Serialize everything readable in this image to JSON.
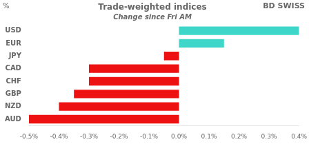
{
  "chart_data": {
    "type": "bar",
    "orientation": "horizontal",
    "title": "Trade-weighted indices",
    "subtitle": "Change since Fri AM",
    "annotations": [
      "%",
      "BD",
      "SWISS"
    ],
    "categories": [
      "USD",
      "EUR",
      "JPY",
      "CAD",
      "CHF",
      "GBP",
      "NZD",
      "AUD"
    ],
    "values": [
      0.004,
      0.0015,
      -0.0005,
      -0.003,
      -0.003,
      -0.0035,
      -0.004,
      -0.005
    ],
    "colors": [
      "#3dd6c8",
      "#3dd6c8",
      "#ee1111",
      "#ee1111",
      "#ee1111",
      "#ee1111",
      "#ee1111",
      "#ee1111"
    ],
    "xlim": [
      -0.005,
      0.004
    ],
    "xticks": [
      {
        "value": -0.005,
        "label": "-0.5%"
      },
      {
        "value": -0.004,
        "label": "-0.4%"
      },
      {
        "value": -0.003,
        "label": "-0.3%"
      },
      {
        "value": -0.002,
        "label": "-0.2%"
      },
      {
        "value": -0.001,
        "label": "-0.1%"
      },
      {
        "value": 0.0,
        "label": "0.0%"
      },
      {
        "value": 0.001,
        "label": "0.1%"
      },
      {
        "value": 0.002,
        "label": "0.2%"
      },
      {
        "value": 0.003,
        "label": "0.3%"
      },
      {
        "value": 0.004,
        "label": "0.4%"
      }
    ],
    "grid": false
  }
}
